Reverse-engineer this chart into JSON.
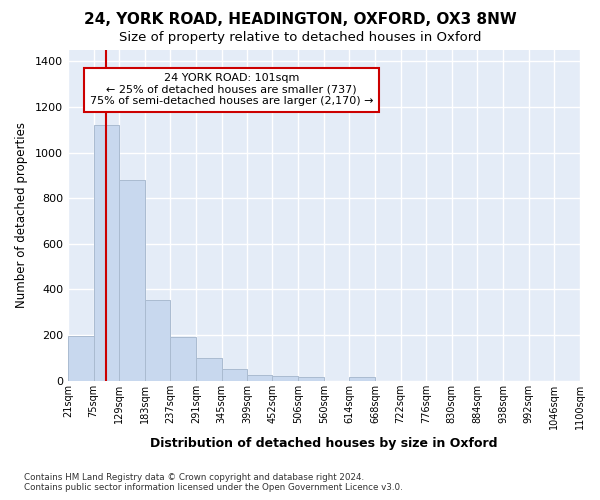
{
  "title": "24, YORK ROAD, HEADINGTON, OXFORD, OX3 8NW",
  "subtitle": "Size of property relative to detached houses in Oxford",
  "xlabel": "Distribution of detached houses by size in Oxford",
  "ylabel": "Number of detached properties",
  "bar_color": "#c8d8ee",
  "bar_edge_color": "#aabbd0",
  "background_color": "#e4ecf7",
  "grid_color": "#ffffff",
  "annotation_text": "24 YORK ROAD: 101sqm\n← 25% of detached houses are smaller (737)\n75% of semi-detached houses are larger (2,170) →",
  "annotation_box_facecolor": "#ffffff",
  "annotation_border_color": "#cc0000",
  "property_line_x": 101,
  "property_line_color": "#cc0000",
  "bin_edges": [
    21,
    75,
    129,
    183,
    237,
    291,
    345,
    399,
    452,
    506,
    560,
    614,
    668,
    722,
    776,
    830,
    884,
    938,
    992,
    1046,
    1100
  ],
  "bin_counts": [
    197,
    1120,
    878,
    352,
    192,
    100,
    52,
    25,
    22,
    18,
    0,
    15,
    0,
    0,
    0,
    0,
    0,
    0,
    0,
    0
  ],
  "tick_labels": [
    "21sqm",
    "75sqm",
    "129sqm",
    "183sqm",
    "237sqm",
    "291sqm",
    "345sqm",
    "399sqm",
    "452sqm",
    "506sqm",
    "560sqm",
    "614sqm",
    "668sqm",
    "722sqm",
    "776sqm",
    "830sqm",
    "884sqm",
    "938sqm",
    "992sqm",
    "1046sqm",
    "1100sqm"
  ],
  "yticks": [
    0,
    200,
    400,
    600,
    800,
    1000,
    1200,
    1400
  ],
  "ylim": [
    0,
    1450
  ],
  "footnote": "Contains HM Land Registry data © Crown copyright and database right 2024.\nContains public sector information licensed under the Open Government Licence v3.0.",
  "fig_facecolor": "#ffffff",
  "title_fontsize": 11,
  "subtitle_fontsize": 9.5
}
